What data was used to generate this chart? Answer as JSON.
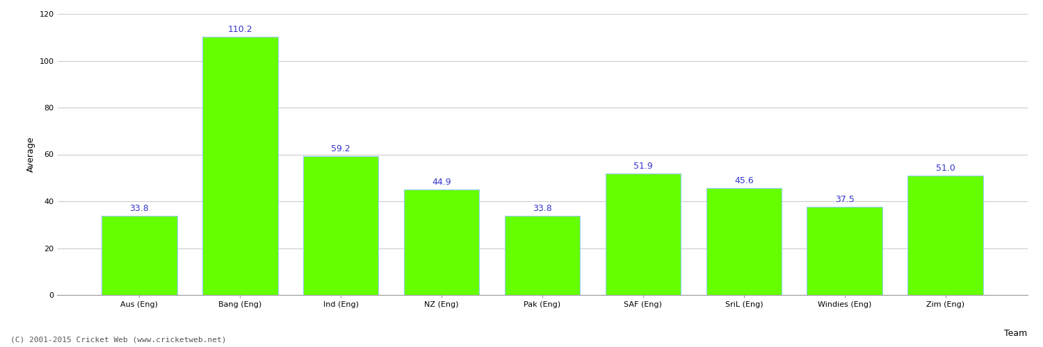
{
  "categories": [
    "Aus (Eng)",
    "Bang (Eng)",
    "Ind (Eng)",
    "NZ (Eng)",
    "Pak (Eng)",
    "SAF (Eng)",
    "SriL (Eng)",
    "Windies (Eng)",
    "Zim (Eng)"
  ],
  "values": [
    33.8,
    110.2,
    59.2,
    44.9,
    33.8,
    51.9,
    45.6,
    37.5,
    51.0
  ],
  "bar_color": "#66ff00",
  "bar_edge_color": "#99ccff",
  "xlabel": "Team",
  "ylabel": "Average",
  "ylim": [
    0,
    120
  ],
  "yticks": [
    0,
    20,
    40,
    60,
    80,
    100,
    120
  ],
  "label_color": "#3333cc",
  "label_fontsize": 9,
  "axis_label_fontsize": 9,
  "tick_fontsize": 8,
  "background_color": "#ffffff",
  "grid_color": "#cccccc",
  "footer_text": "(C) 2001-2015 Cricket Web (www.cricketweb.net)",
  "footer_fontsize": 8,
  "footer_color": "#555555",
  "bar_width": 0.75
}
